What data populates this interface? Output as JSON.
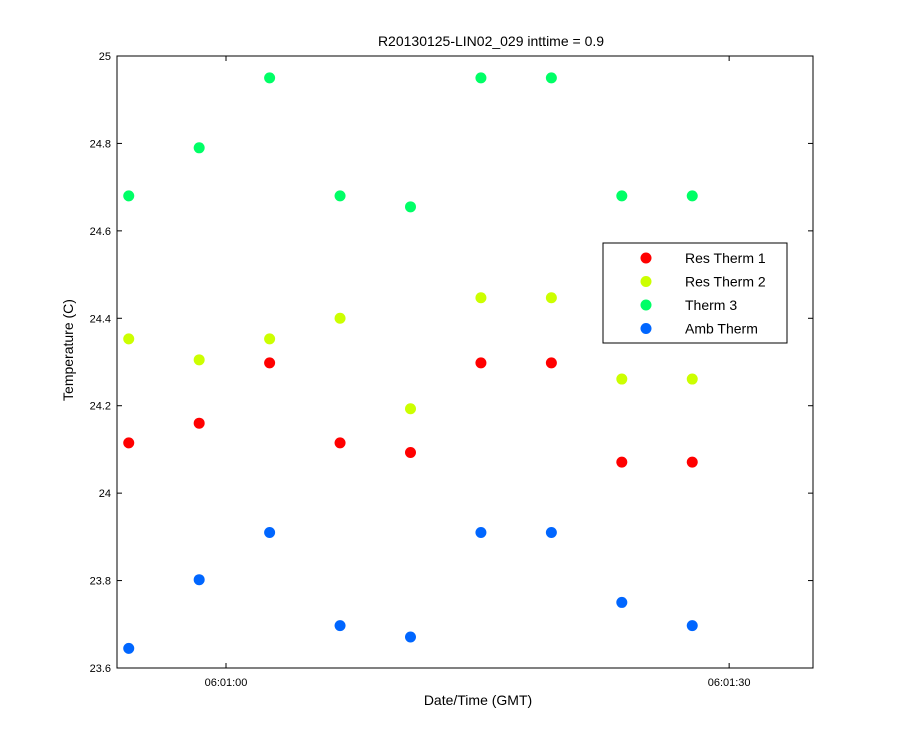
{
  "chart_data": {
    "type": "scatter",
    "title": "R20130125-LIN02_029 inttime = 0.9",
    "xlabel": "Date/Time (GMT)",
    "ylabel": "Temperature (C)",
    "x_unit": "time (HH:MM:SS)",
    "xlim": [
      "06:00:53.5",
      "06:01:35.0"
    ],
    "ylim": [
      23.6,
      25.0
    ],
    "x_ticks": [
      {
        "value": "06:01:00",
        "label": "06:01:00"
      },
      {
        "value": "06:01:30",
        "label": "06:01:30"
      }
    ],
    "y_ticks": [
      {
        "value": 23.6,
        "label": "23.6"
      },
      {
        "value": 23.8,
        "label": "23.8"
      },
      {
        "value": 24.0,
        "label": "24"
      },
      {
        "value": 24.2,
        "label": "24.2"
      },
      {
        "value": 24.4,
        "label": "24.4"
      },
      {
        "value": 24.6,
        "label": "24.6"
      },
      {
        "value": 24.8,
        "label": "24.8"
      },
      {
        "value": 25.0,
        "label": "25"
      }
    ],
    "grid": false,
    "legend_position": "right-middle",
    "x": [
      "06:00:54.2",
      "06:00:58.4",
      "06:01:02.6",
      "06:01:06.8",
      "06:01:11.0",
      "06:01:15.2",
      "06:01:19.4",
      "06:01:23.6",
      "06:01:27.8"
    ],
    "series": [
      {
        "name": "Res Therm 1",
        "color": "#ff0000",
        "values": [
          24.115,
          24.16,
          24.298,
          24.115,
          24.093,
          24.298,
          24.298,
          24.071,
          24.071
        ]
      },
      {
        "name": "Res Therm 2",
        "color": "#ccff00",
        "values": [
          24.353,
          24.305,
          24.353,
          24.4,
          24.193,
          24.447,
          24.447,
          24.261,
          24.261
        ]
      },
      {
        "name": "Therm 3",
        "color": "#00ff66",
        "values": [
          24.68,
          24.79,
          24.95,
          24.68,
          24.655,
          24.95,
          24.95,
          24.68,
          24.68
        ]
      },
      {
        "name": "Amb Therm",
        "color": "#0066ff",
        "values": [
          23.645,
          23.802,
          23.91,
          23.697,
          23.671,
          23.91,
          23.91,
          23.75,
          23.697
        ]
      }
    ]
  }
}
